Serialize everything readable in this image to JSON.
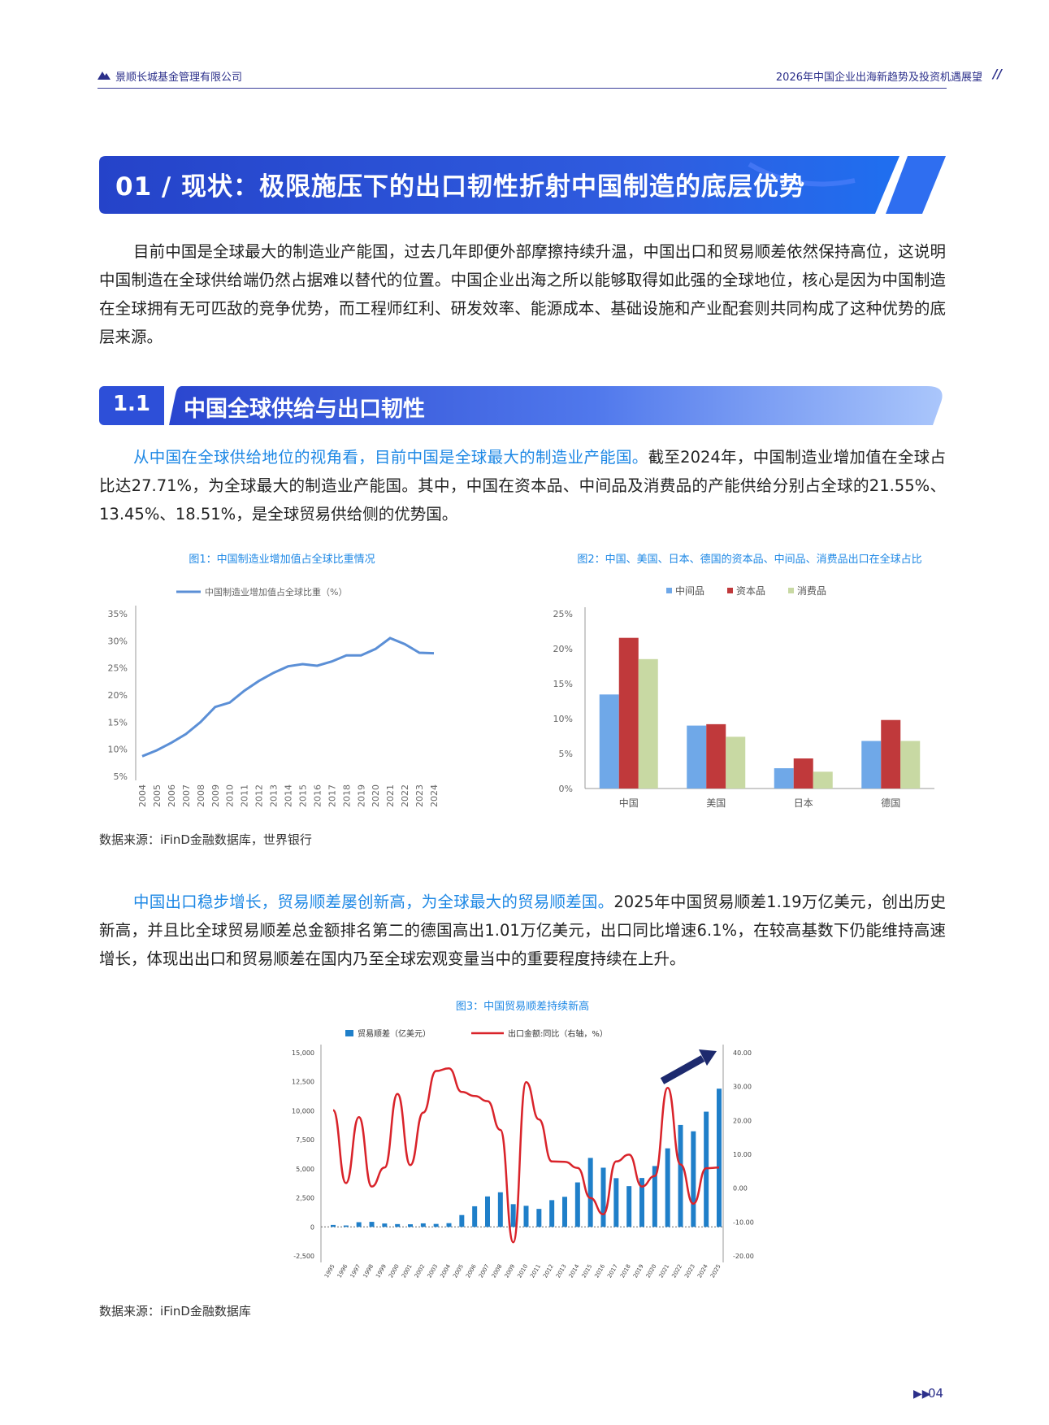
{
  "header": {
    "company": "景顺长城基金管理有限公司",
    "report_title": "2026年中国企业出海新趋势及投资机遇展望",
    "slash": "//"
  },
  "section": {
    "title": "01 / 现状：极限施压下的出口韧性折射中国制造的底层优势"
  },
  "intro_paragraph": "目前中国是全球最大的制造业产能国，过去几年即便外部摩擦持续升温，中国出口和贸易顺差依然保持高位，这说明中国制造在全球供给端仍然占据难以替代的位置。中国企业出海之所以能够取得如此强的全球地位，核心是因为中国制造在全球拥有无可匹敌的竞争优势，而工程师红利、研发效率、能源成本、基础设施和产业配套则共同构成了这种优势的底层来源。",
  "subsection": {
    "number": "1.1",
    "title": "中国全球供给与出口韧性"
  },
  "para2": {
    "highlight": "从中国在全球供给地位的视角看，目前中国是全球最大的制造业产能国。",
    "text": "截至2024年，中国制造业增加值在全球占比达27.71%，为全球最大的制造业产能国。其中，中国在资本品、中间品及消费品的产能供给分别占全球的21.55%、13.45%、18.51%，是全球贸易供给侧的优势国。"
  },
  "fig1_caption": "图1：中国制造业增加值占全球比重情况",
  "fig2_caption": "图2：中国、美国、日本、德国的资本品、中间品、消费品出口在全球占比",
  "source1": "数据来源：iFinD金融数据库，世界银行",
  "para3": {
    "highlight": "中国出口稳步增长，贸易顺差屡创新高，为全球最大的贸易顺差国。",
    "text": "2025年中国贸易顺差1.19万亿美元，创出历史新高，并且比全球贸易顺差总金额排名第二的德国高出1.01万亿美元，出口同比增速6.1%，在较高基数下仍能维持高速增长，体现出出口和贸易顺差在国内乃至全球宏观变量当中的重要程度持续在上升。"
  },
  "fig3_caption": "图3：中国贸易顺差持续新高",
  "source2": "数据来源：iFinD金融数据库",
  "page_number": "04",
  "colors": {
    "brand": "#2d4fd8",
    "text_highlight": "#1e88e5",
    "series_intermediate": "#6fa8e8",
    "series_capital": "#c0393b",
    "series_consumer": "#c8d9a3",
    "bar_blue": "#1f7fc9",
    "line_red": "#d9232a"
  },
  "chart_data": [
    {
      "type": "line",
      "legend": [
        "中国制造业增加值占全球比重（%）"
      ],
      "x": [
        "2004",
        "2005",
        "2006",
        "2007",
        "2008",
        "2009",
        "2010",
        "2011",
        "2012",
        "2013",
        "2014",
        "2015",
        "2016",
        "2017",
        "2018",
        "2019",
        "2020",
        "2021",
        "2022",
        "2023",
        "2024"
      ],
      "series": [
        {
          "name": "中国制造业增加值占全球比重（%）",
          "values": [
            8.7,
            9.8,
            11.2,
            12.8,
            15.0,
            17.8,
            18.6,
            20.8,
            22.6,
            24.1,
            25.3,
            25.7,
            25.4,
            26.2,
            27.3,
            27.3,
            28.5,
            30.5,
            29.4,
            27.8,
            27.71
          ]
        }
      ],
      "yticks": [
        "5%",
        "10%",
        "15%",
        "20%",
        "25%",
        "30%",
        "35%"
      ],
      "ylim": [
        5,
        35
      ],
      "grid": false,
      "legend_position": "top"
    },
    {
      "type": "bar",
      "categories": [
        "中国",
        "美国",
        "日本",
        "德国"
      ],
      "series": [
        {
          "name": "中间品",
          "values": [
            13.45,
            9.0,
            2.9,
            6.8
          ]
        },
        {
          "name": "资本品",
          "values": [
            21.55,
            9.2,
            4.3,
            9.8
          ]
        },
        {
          "name": "消费品",
          "values": [
            18.51,
            7.4,
            2.4,
            6.8
          ]
        }
      ],
      "yticks": [
        "0%",
        "5%",
        "10%",
        "15%",
        "20%",
        "25%"
      ],
      "ylim": [
        0,
        25
      ],
      "legend_position": "top"
    },
    {
      "type": "bar",
      "legend": [
        "贸易顺差（亿美元）",
        "出口金额:同比（右轴，%）"
      ],
      "x": [
        "1995",
        "1996",
        "1997",
        "1998",
        "1999",
        "2000",
        "2001",
        "2002",
        "2003",
        "2004",
        "2005",
        "2006",
        "2007",
        "2008",
        "2009",
        "2010",
        "2011",
        "2012",
        "2013",
        "2014",
        "2015",
        "2016",
        "2017",
        "2018",
        "2019",
        "2020",
        "2021",
        "2022",
        "2023",
        "2024",
        "2025"
      ],
      "series": [
        {
          "name": "贸易顺差（亿美元）",
          "values": [
            167,
            122,
            404,
            435,
            292,
            241,
            225,
            304,
            255,
            321,
            1020,
            1775,
            2622,
            2981,
            1957,
            1815,
            1549,
            2303,
            2590,
            3831,
            5939,
            5097,
            4196,
            3509,
            4211,
            5240,
            6764,
            8776,
            8232,
            9921,
            11900
          ]
        },
        {
          "name": "出口金额:同比（右轴，%）",
          "values": [
            23.0,
            1.5,
            21.0,
            0.5,
            6.1,
            27.8,
            6.8,
            22.3,
            34.6,
            35.4,
            28.4,
            27.2,
            25.7,
            17.2,
            -16.0,
            31.3,
            20.3,
            7.9,
            7.8,
            6.0,
            -2.9,
            -7.7,
            7.9,
            9.9,
            0.5,
            3.6,
            29.6,
            7.0,
            -4.6,
            5.9,
            6.1
          ]
        }
      ],
      "y_left_ticks": [
        "-2,500",
        "0",
        "2,500",
        "5,000",
        "7,500",
        "10,000",
        "12,500",
        "15,000"
      ],
      "y_right_ticks": [
        "-20.00",
        "-10.00",
        "0.00",
        "10.00",
        "20.00",
        "30.00",
        "40.00"
      ],
      "ylim_left": [
        -2500,
        15000
      ],
      "ylim_right": [
        -20,
        40
      ],
      "grid": false,
      "legend_position": "top"
    }
  ]
}
